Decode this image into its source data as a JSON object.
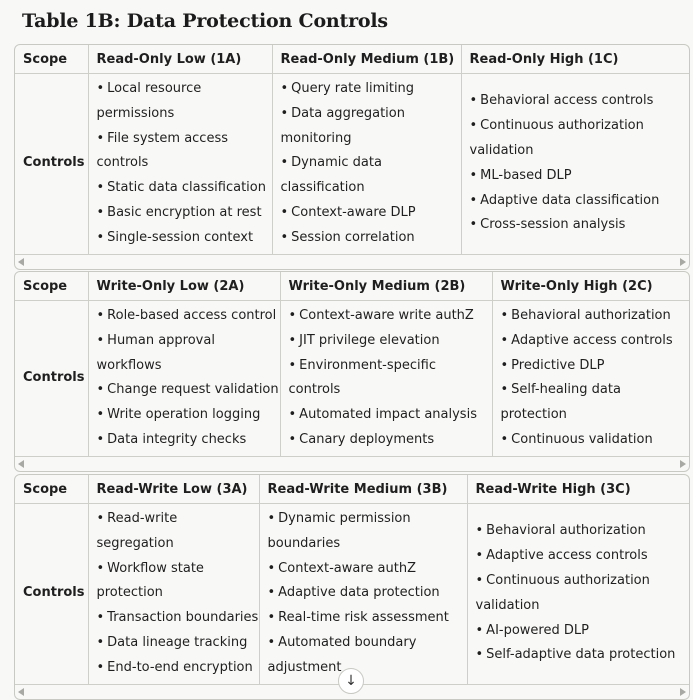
{
  "title": "Table 1B: Data Protection Controls",
  "tables": [
    {
      "headers": [
        "Scope",
        "Read-Only Low (1A)",
        "Read-Only Medium (1B)",
        "Read-Only High (1C)"
      ],
      "row_label": "Controls",
      "cells": [
        [
          "Local resource permissions",
          "File system access controls",
          "Static data classification",
          "Basic encryption at rest",
          "Single-session context"
        ],
        [
          "Query rate limiting",
          "Data aggregation monitoring",
          "Dynamic data classification",
          "Context-aware DLP",
          "Session correlation"
        ],
        [
          "Behavioral access controls",
          "Continuous authorization validation",
          "ML-based DLP",
          "Adaptive data classification",
          "Cross-session analysis"
        ]
      ]
    },
    {
      "headers": [
        "Scope",
        "Write-Only Low (2A)",
        "Write-Only Medium (2B)",
        "Write-Only High (2C)"
      ],
      "row_label": "Controls",
      "cells": [
        [
          "Role-based access control",
          "Human approval workflows",
          "Change request validation",
          "Write operation logging",
          "Data integrity checks"
        ],
        [
          "Context-aware write authZ",
          "JIT privilege elevation",
          "Environment-specific controls",
          "Automated impact analysis",
          "Canary deployments"
        ],
        [
          "Behavioral authorization",
          "Adaptive access controls",
          "Predictive DLP",
          "Self-healing data protection",
          "Continuous validation"
        ]
      ]
    },
    {
      "headers": [
        "Scope",
        "Read-Write Low (3A)",
        "Read-Write Medium (3B)",
        "Read-Write High (3C)"
      ],
      "row_label": "Controls",
      "cells": [
        [
          "Read-write segregation",
          "Workflow state protection",
          "Transaction boundaries",
          "Data lineage tracking",
          "End-to-end encryption"
        ],
        [
          "Dynamic permission boundaries",
          "Context-aware authZ",
          "Adaptive data protection",
          "Real-time risk assessment",
          "Automated boundary adjustment"
        ],
        [
          "Behavioral authorization",
          "Adaptive access controls",
          "Continuous authorization validation",
          "AI-powered DLP",
          "Self-adaptive data protection"
        ]
      ]
    }
  ],
  "icons": {
    "scroll_down": "arrow-down-icon",
    "scroll_left": "scroll-left-icon",
    "scroll_right": "scroll-right-icon"
  }
}
